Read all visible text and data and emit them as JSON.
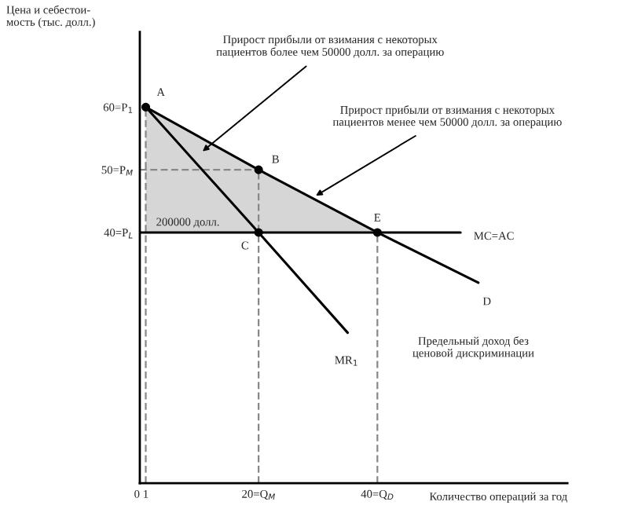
{
  "chart_data": {
    "type": "line",
    "xlabel": "Количество операций за год",
    "ylabel": "Цена и себестои-\nмость (тыс. долл.)",
    "xlim": [
      0,
      72
    ],
    "ylim": [
      0,
      72
    ],
    "xticks": [
      {
        "value": 0,
        "label": "0"
      },
      1,
      {
        "value": 20,
        "label": "20=Q$_{M}$"
      },
      {
        "value": 40,
        "label": "40=Q$_{D}$"
      }
    ],
    "yticks": [
      {
        "value": 40,
        "label": "40=P$_{L}$"
      },
      {
        "value": 50,
        "label": "50=P$_{M}$"
      },
      {
        "value": 60,
        "label": "60=P$_{1}$"
      }
    ],
    "grid": false,
    "legend": false,
    "series": [
      {
        "type": "area",
        "color": "#d6d6d6",
        "x": [
          1,
          20,
          40,
          1
        ],
        "values": [
          60,
          50,
          40,
          40
        ]
      },
      {
        "color": "#888888",
        "line_style": "dashed",
        "x": [
          1,
          1
        ],
        "values": [
          0,
          60
        ]
      },
      {
        "color": "#888888",
        "line_style": "dashed",
        "x": [
          20,
          20
        ],
        "values": [
          0,
          50
        ]
      },
      {
        "color": "#888888",
        "line_style": "dashed",
        "x": [
          40,
          40
        ],
        "values": [
          0,
          40
        ]
      },
      {
        "color": "#888888",
        "line_style": "dashed",
        "x": [
          0,
          20
        ],
        "values": [
          50,
          50
        ]
      },
      {
        "name": "D",
        "color": "#000000",
        "line_style": "solid",
        "x": [
          1,
          20,
          40,
          57
        ],
        "values": [
          60,
          50,
          40,
          32
        ]
      },
      {
        "name": "MR$_{1}$",
        "color": "#000000",
        "line_style": "solid",
        "x": [
          1,
          20,
          35
        ],
        "values": [
          60,
          40,
          24
        ]
      },
      {
        "name": "MC=AC",
        "color": "#000000",
        "line_style": "solid",
        "x": [
          0,
          54
        ],
        "values": [
          40,
          40
        ]
      },
      {
        "type": "scatter",
        "color": "#000000",
        "marker": "circle",
        "x": [
          1,
          20,
          20,
          40
        ],
        "values": [
          60,
          50,
          40,
          40
        ]
      }
    ],
    "annotations": [
      {
        "text": "A",
        "x": 1,
        "y": 60
      },
      {
        "text": "B",
        "x": 20,
        "y": 50
      },
      {
        "text": "C",
        "x": 20,
        "y": 40
      },
      {
        "text": "E",
        "x": 40,
        "y": 40
      },
      {
        "text": "200000 долл.",
        "x": 2,
        "y": 40
      },
      {
        "text": "Прирост прибыли от взимания с некоторых\nпациентов более чем 50000 долл. за операцию",
        "x": 10,
        "y": 52.5
      },
      {
        "text": "Прирост прибыли от взимания с некоторых\nпациентов менее чем 50000 долл. за операцию",
        "x": 29,
        "y": 45.5
      },
      "Предельный доход без\nценовой дискриминации"
    ]
  }
}
